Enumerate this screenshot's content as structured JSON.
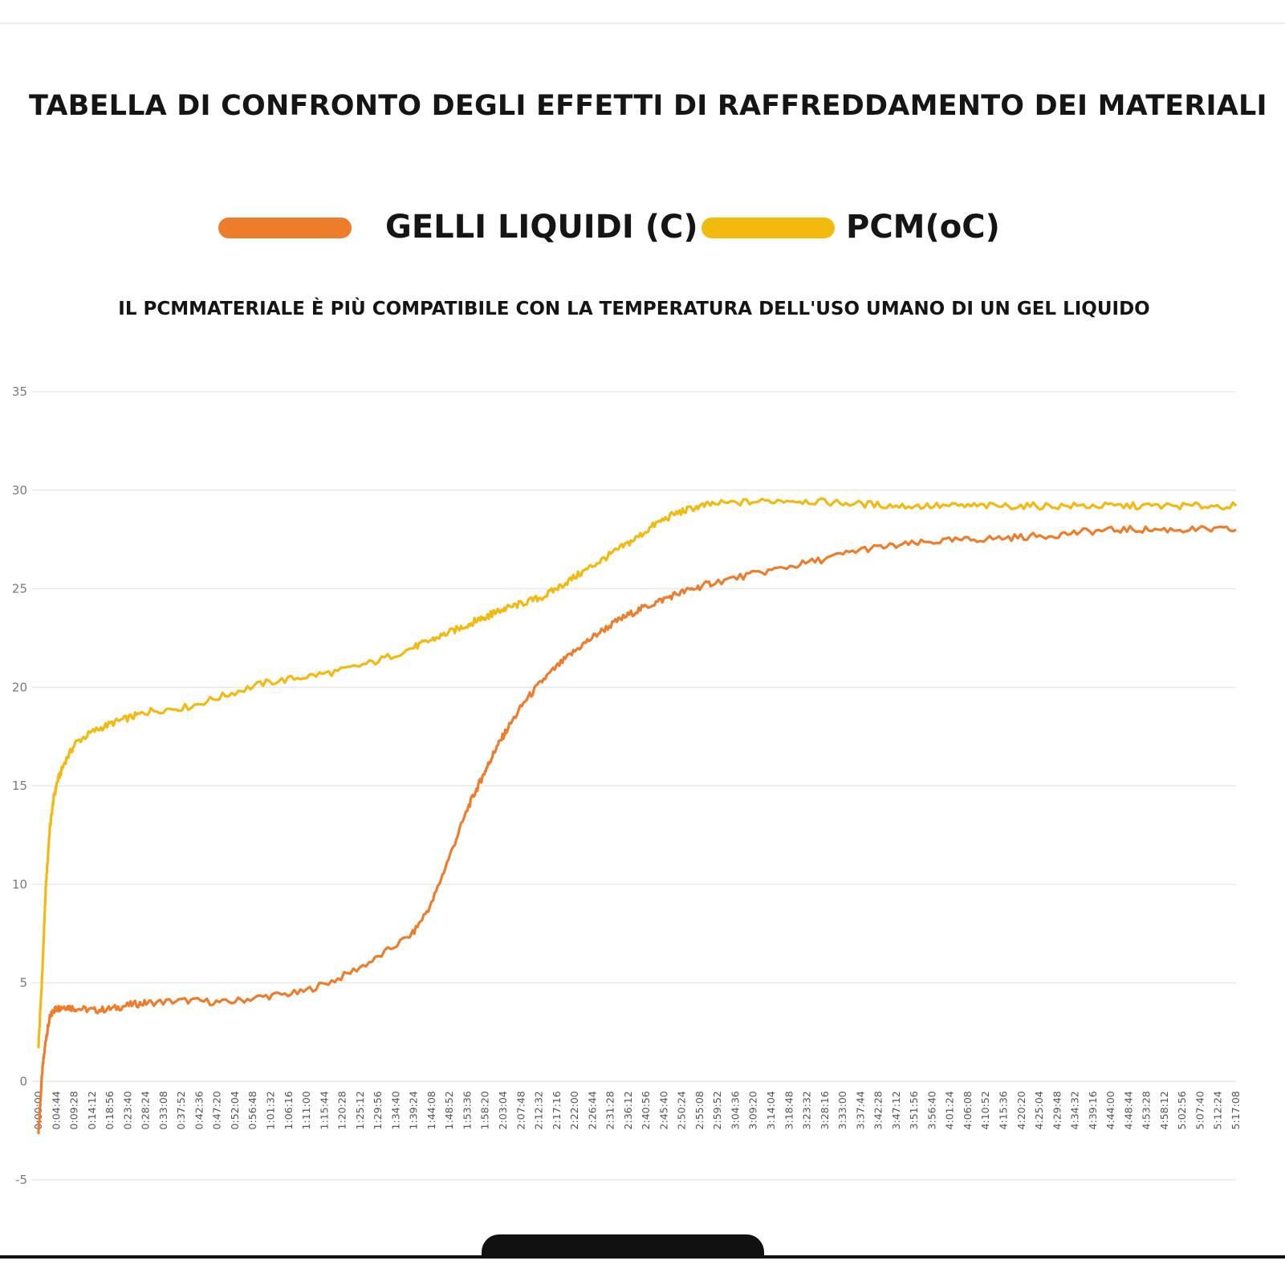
{
  "title": "TABELLA DI CONFRONTO DEGLI EFFETTI DI RAFFREDDAMENTO DEI MATERIALI",
  "subtitle": "IL PCMMATERIALE È PIÙ COMPATIBILE CON LA TEMPERATURA DELL'USO UMANO DI UN GEL LIQUIDO",
  "legend": [
    {
      "label": "GELLI LIQUIDI (C)",
      "color": "#ee7d2b"
    },
    {
      "label": "PCM(oC)",
      "color": "#f2b90f"
    }
  ],
  "chart_data": {
    "type": "line",
    "ylim": [
      -5,
      35
    ],
    "yticks": [
      35,
      30,
      25,
      20,
      15,
      10,
      5,
      0,
      -5
    ],
    "grid": true,
    "legend_position": "top",
    "x_tick_labels": [
      "0:00:00",
      "0:04:44",
      "0:09:28",
      "0:14:12",
      "0:18:56",
      "0:23:40",
      "0:28:24",
      "0:33:08",
      "0:37:52",
      "0:42:36",
      "0:47:20",
      "0:52:04",
      "0:56:48",
      "1:01:32",
      "1:06:16",
      "1:11:00",
      "1:15:44",
      "1:20:28",
      "1:25:12",
      "1:29:56",
      "1:34:40",
      "1:39:24",
      "1:44:08",
      "1:48:52",
      "1:53:36",
      "1:58:20",
      "2:03:04",
      "2:07:48",
      "2:12:32",
      "2:17:16",
      "2:22:00",
      "2:26:44",
      "2:31:28",
      "2:36:12",
      "2:40:56",
      "2:45:40",
      "2:50:24",
      "2:55:08",
      "2:59:52",
      "3:04:36",
      "3:09:20",
      "3:14:04",
      "3:18:48",
      "3:23:32",
      "3:28:16",
      "3:33:00",
      "3:37:44",
      "3:42:28",
      "3:47:12",
      "3:51:56",
      "3:56:40",
      "4:01:24",
      "4:06:08",
      "4:10:52",
      "4:15:36",
      "4:20:20",
      "4:25:04",
      "4:29:48",
      "4:34:32",
      "4:39:16",
      "4:44:00",
      "4:48:44",
      "4:53:28",
      "4:58:12",
      "5:02:56",
      "5:07:40",
      "5:12:24",
      "5:17:08"
    ],
    "x_minutes": [
      0,
      1,
      2,
      3,
      4,
      5,
      7,
      10,
      15,
      20,
      25,
      30,
      40,
      50,
      60,
      70,
      80,
      90,
      100,
      105,
      110,
      115,
      118,
      120,
      122,
      125,
      130,
      135,
      140,
      145,
      150,
      155,
      160,
      165,
      170,
      175,
      180,
      190,
      200,
      210,
      220,
      230,
      240,
      250,
      260,
      270,
      280,
      290,
      300,
      310,
      320
    ],
    "series": [
      {
        "name": "GELLI LIQUIDI (C)",
        "color": "#ee7d2b",
        "values": [
          -2.5,
          0.5,
          2.2,
          3.2,
          3.6,
          3.7,
          3.8,
          3.7,
          3.6,
          3.7,
          3.9,
          4.0,
          4.1,
          4.0,
          4.3,
          4.5,
          5.2,
          6.2,
          7.5,
          9.0,
          11.5,
          14.0,
          15.2,
          16.0,
          16.8,
          17.8,
          19.3,
          20.4,
          21.3,
          22.1,
          22.8,
          23.4,
          23.9,
          24.3,
          24.7,
          25.0,
          25.3,
          25.7,
          26.1,
          26.5,
          27.0,
          27.2,
          27.4,
          27.5,
          27.6,
          27.7,
          27.9,
          28.0,
          28.0,
          28.0,
          28.0
        ],
        "estimated_points": true
      },
      {
        "name": "PCM(oC)",
        "color": "#f2b90f",
        "values": [
          1.8,
          5.5,
          10.0,
          12.8,
          14.3,
          15.2,
          16.2,
          17.2,
          17.8,
          18.2,
          18.5,
          18.8,
          19.0,
          19.6,
          20.2,
          20.5,
          20.8,
          21.3,
          22.0,
          22.4,
          22.8,
          23.2,
          23.5,
          23.6,
          23.8,
          24.0,
          24.3,
          24.6,
          25.2,
          25.8,
          26.4,
          27.0,
          27.6,
          28.3,
          28.8,
          29.1,
          29.3,
          29.4,
          29.5,
          29.4,
          29.3,
          29.2,
          29.2,
          29.2,
          29.2,
          29.2,
          29.2,
          29.2,
          29.2,
          29.2,
          29.2
        ],
        "estimated_points": true
      }
    ]
  }
}
